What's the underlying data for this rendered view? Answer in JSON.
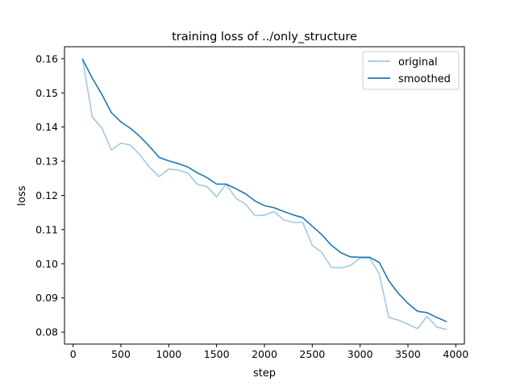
{
  "chart_data": {
    "type": "line",
    "title": "training loss of ../only_structure",
    "xlabel": "step",
    "ylabel": "loss",
    "xlim": [
      -90,
      4090
    ],
    "ylim": [
      0.0765,
      0.1635
    ],
    "xticks": [
      0,
      500,
      1000,
      1500,
      2000,
      2500,
      3000,
      3500,
      4000
    ],
    "xtick_labels": [
      "0",
      "500",
      "1000",
      "1500",
      "2000",
      "2500",
      "3000",
      "3500",
      "4000"
    ],
    "yticks": [
      0.08,
      0.09,
      0.1,
      0.11,
      0.12,
      0.13,
      0.14,
      0.15,
      0.16
    ],
    "ytick_labels": [
      "0.08",
      "0.09",
      "0.10",
      "0.11",
      "0.12",
      "0.13",
      "0.14",
      "0.15",
      "0.16"
    ],
    "grid": false,
    "legend_position": "top-right",
    "x": [
      100,
      200,
      300,
      400,
      500,
      600,
      700,
      800,
      900,
      1000,
      1100,
      1200,
      1300,
      1400,
      1500,
      1600,
      1700,
      1800,
      1900,
      2000,
      2100,
      2200,
      2300,
      2400,
      2500,
      2600,
      2700,
      2800,
      2900,
      3000,
      3100,
      3200,
      3300,
      3400,
      3500,
      3600,
      3700,
      3800,
      3900
    ],
    "series": [
      {
        "name": "original",
        "color": "#9ecae1",
        "values": [
          0.1598,
          0.143,
          0.1397,
          0.1333,
          0.1353,
          0.1347,
          0.1318,
          0.1282,
          0.1255,
          0.1277,
          0.1274,
          0.1265,
          0.1232,
          0.1226,
          0.1196,
          0.1233,
          0.1192,
          0.1175,
          0.1141,
          0.1142,
          0.1153,
          0.1129,
          0.1121,
          0.1121,
          0.1054,
          0.1033,
          0.0989,
          0.0988,
          0.0995,
          0.1017,
          0.1017,
          0.097,
          0.0843,
          0.0835,
          0.0823,
          0.081,
          0.0846,
          0.0815,
          0.0808
        ]
      },
      {
        "name": "smoothed",
        "color": "#1f77b4",
        "values": [
          0.1598,
          0.1543,
          0.1496,
          0.1442,
          0.1415,
          0.1396,
          0.1372,
          0.1343,
          0.1311,
          0.1301,
          0.1293,
          0.1283,
          0.1266,
          0.1252,
          0.1233,
          0.1233,
          0.122,
          0.1205,
          0.1184,
          0.117,
          0.1164,
          0.1153,
          0.1143,
          0.1135,
          0.111,
          0.1085,
          0.1054,
          0.1032,
          0.102,
          0.1019,
          0.1019,
          0.1004,
          0.095,
          0.0913,
          0.0884,
          0.0861,
          0.0857,
          0.0843,
          0.0831
        ]
      }
    ]
  }
}
